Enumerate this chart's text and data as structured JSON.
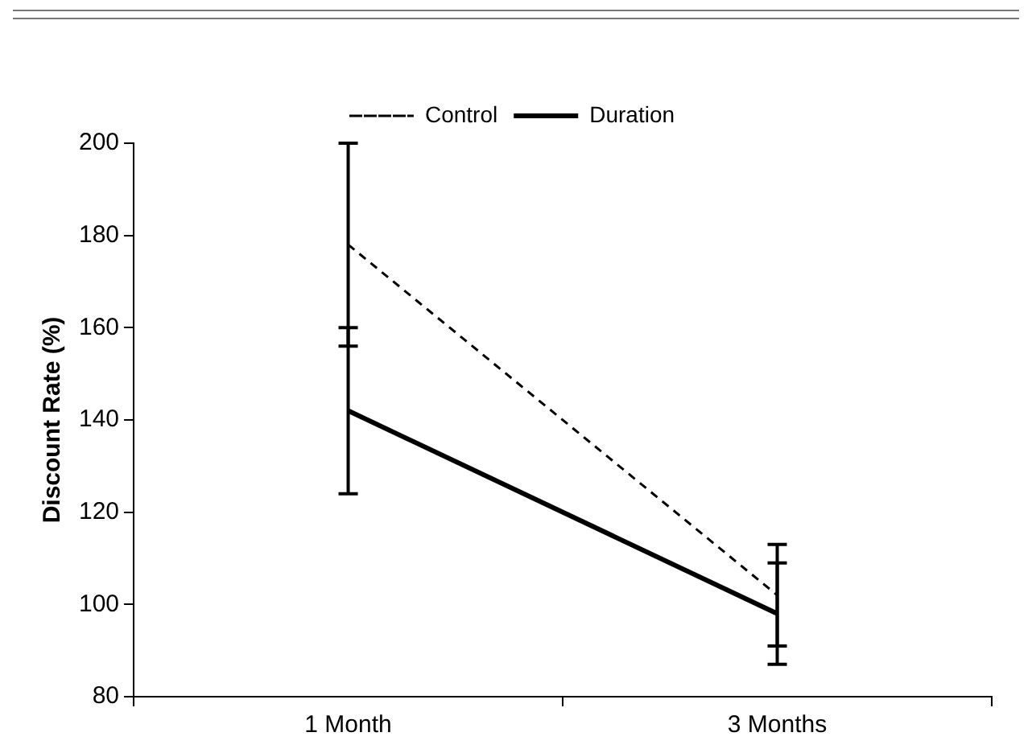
{
  "chart_data": {
    "type": "line",
    "ylabel": "Discount Rate (%)",
    "categories": [
      "1 Month",
      "3 Months"
    ],
    "series": [
      {
        "name": "Control",
        "color": "#000000",
        "line_style": "dashed",
        "values": [
          178,
          102
        ],
        "errors": [
          22,
          11
        ]
      },
      {
        "name": "Duration",
        "color": "#000000",
        "line_style": "solid",
        "values": [
          142,
          98
        ],
        "errors": [
          18,
          11
        ]
      }
    ],
    "ylim": [
      80,
      200
    ],
    "yticks": [
      80,
      100,
      120,
      140,
      160,
      180,
      200
    ],
    "grid": false,
    "legend": "top",
    "marker": "none"
  }
}
